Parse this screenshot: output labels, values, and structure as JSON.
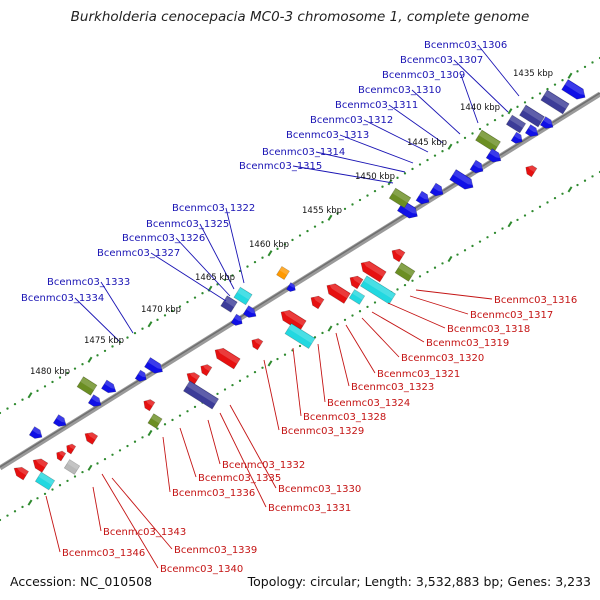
{
  "title": "Burkholderia cenocepacia MC0-3 chromosome 1, complete genome",
  "footer": {
    "accession": "Accession: NC_010508",
    "summary": "Topology: circular; Length: 3,532,883 bp; Genes: 3,233"
  },
  "colors": {
    "cds_plus": "#1010e6",
    "cds_minus": "#e61010",
    "trna": "#6b8e23",
    "rrna": "#22d8e0",
    "misc": "#3c3c98",
    "orange_feature": "#ff9900",
    "grey_feature": "#b8b8b8",
    "backbone": "#8a8a8a",
    "tick_dots": "#2f8a2f"
  },
  "ruler_labels": [
    "1435 kbp",
    "1440 kbp",
    "1445 kbp",
    "1450 kbp",
    "1455 kbp",
    "1460 kbp",
    "1465 kbp",
    "1470 kbp",
    "1475 kbp",
    "1480 kbp"
  ],
  "plus_labels": [
    "Bcenmc03_1306",
    "Bcenmc03_1307",
    "Bcenmc03_1309",
    "Bcenmc03_1310",
    "Bcenmc03_1311",
    "Bcenmc03_1312",
    "Bcenmc03_1313",
    "Bcenmc03_1314",
    "Bcenmc03_1315",
    "Bcenmc03_1322",
    "Bcenmc03_1325",
    "Bcenmc03_1326",
    "Bcenmc03_1327",
    "Bcenmc03_1333",
    "Bcenmc03_1334"
  ],
  "minus_labels": [
    "Bcenmc03_1316",
    "Bcenmc03_1317",
    "Bcenmc03_1318",
    "Bcenmc03_1319",
    "Bcenmc03_1320",
    "Bcenmc03_1321",
    "Bcenmc03_1323",
    "Bcenmc03_1324",
    "Bcenmc03_1328",
    "Bcenmc03_1329",
    "Bcenmc03_1332",
    "Bcenmc03_1335",
    "Bcenmc03_1330",
    "Bcenmc03_1336",
    "Bcenmc03_1331",
    "Bcenmc03_1343",
    "Bcenmc03_1339",
    "Bcenmc03_1346",
    "Bcenmc03_1340"
  ]
}
